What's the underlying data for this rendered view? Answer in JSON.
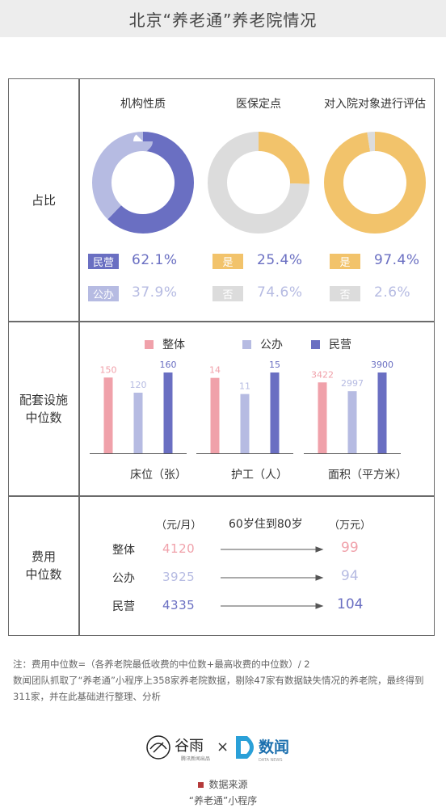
{
  "header": {
    "title": "北京“养老通”养老院情况"
  },
  "rows": {
    "ratio": "占比",
    "facilities": "配套设施\n中位数",
    "fees": "费用\n中位数"
  },
  "colors": {
    "min_ying": "#6a6fc2",
    "gong_ban": "#b6bbe2",
    "yes": "#f2c36b",
    "no": "#dcdcdc",
    "overall": "#f0a1aa"
  },
  "ratio_panels": [
    {
      "title": "机构性质",
      "items": [
        {
          "tag": "民营",
          "value": "62.1%"
        },
        {
          "tag": "公办",
          "value": "37.9%"
        }
      ]
    },
    {
      "title": "医保定点",
      "items": [
        {
          "tag": "是",
          "value": "25.4%"
        },
        {
          "tag": "否",
          "value": "74.6%"
        }
      ]
    },
    {
      "title": "对入院对象进行评估",
      "items": [
        {
          "tag": "是",
          "value": "97.4%"
        },
        {
          "tag": "否",
          "value": "2.6%"
        }
      ]
    }
  ],
  "legend": [
    "整体",
    "公办",
    "民营"
  ],
  "fees": {
    "head_left": "（元/月）",
    "head_mid": "60岁住到80岁",
    "head_right": "（万元）",
    "rows": [
      {
        "name": "整体",
        "monthly": "4120",
        "total": "99"
      },
      {
        "name": "公办",
        "monthly": "3925",
        "total": "94"
      },
      {
        "name": "民营",
        "monthly": "4335",
        "total": "104"
      }
    ]
  },
  "note": {
    "line1": "注：费用中位数=（各养老院最低收费的中位数+最高收费的中位数）/ 2",
    "line2": "数闻团队抓取了“养老通”小程序上358家养老院数据，剔除47家有数据缺失情况的养老院，最终得到311家，并在此基础进行整理、分析"
  },
  "logos": {
    "guyu": "谷雨",
    "guyu_sub": "腾讯新闻出品",
    "times": "×",
    "shuwen": "数闻",
    "shuwen_sub": "DATA NEWS"
  },
  "source": {
    "label": "数据来源",
    "value": "“养老通”小程序"
  },
  "chart_data": [
    {
      "type": "pie",
      "title": "机构性质",
      "categories": [
        "民营",
        "公办"
      ],
      "values": [
        62.1,
        37.9
      ]
    },
    {
      "type": "pie",
      "title": "医保定点",
      "categories": [
        "是",
        "否"
      ],
      "values": [
        25.4,
        74.6
      ]
    },
    {
      "type": "pie",
      "title": "对入院对象进行评估",
      "categories": [
        "是",
        "否"
      ],
      "values": [
        97.4,
        2.6
      ]
    },
    {
      "type": "bar",
      "categories": [
        "床位（张）",
        "护工（人）",
        "面积（平方米）"
      ],
      "series": [
        {
          "name": "整体",
          "values": [
            150,
            14,
            3422
          ]
        },
        {
          "name": "公办",
          "values": [
            120,
            11,
            2997
          ]
        },
        {
          "name": "民营",
          "values": [
            160,
            15,
            3900
          ]
        }
      ]
    }
  ]
}
